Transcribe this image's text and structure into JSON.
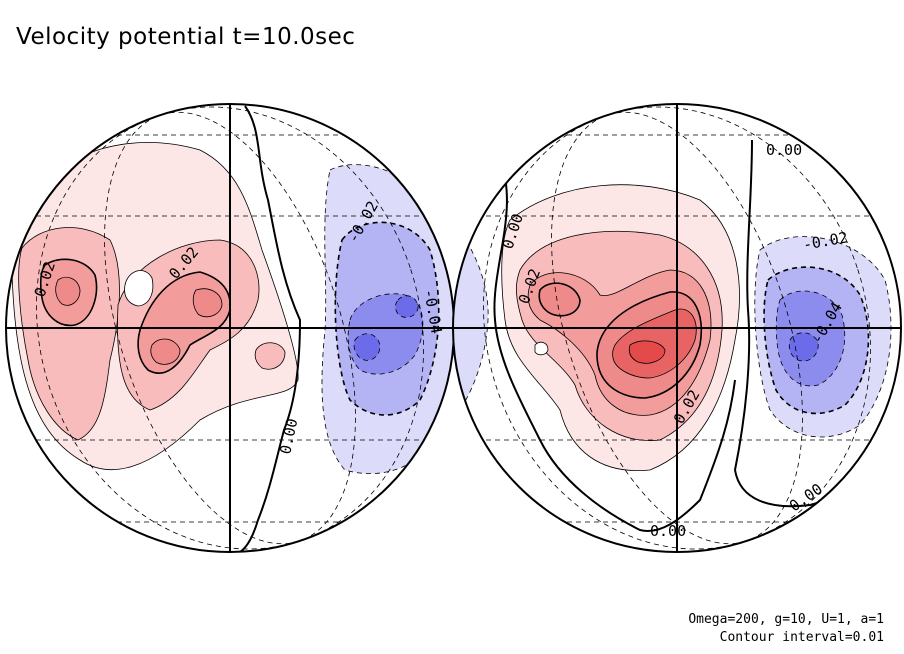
{
  "title": "Velocity potential t=10.0sec",
  "footer": {
    "params": "Omega=200, g=10, U=1, a=1",
    "interval": "Contour interval=0.01"
  },
  "colors": {
    "positive": "#f04040",
    "negative": "#4a4aee",
    "background": "#ffffff",
    "line": "#000000"
  },
  "left_globe": {
    "labels": [
      "0.02",
      "0.02",
      "-0.02",
      "-0.04",
      "0.00"
    ]
  },
  "right_globe": {
    "labels": [
      "0.00",
      "0.00",
      "0.02",
      "0.02",
      "-0.02",
      "-0.04",
      "0.00",
      "0.00"
    ]
  }
}
